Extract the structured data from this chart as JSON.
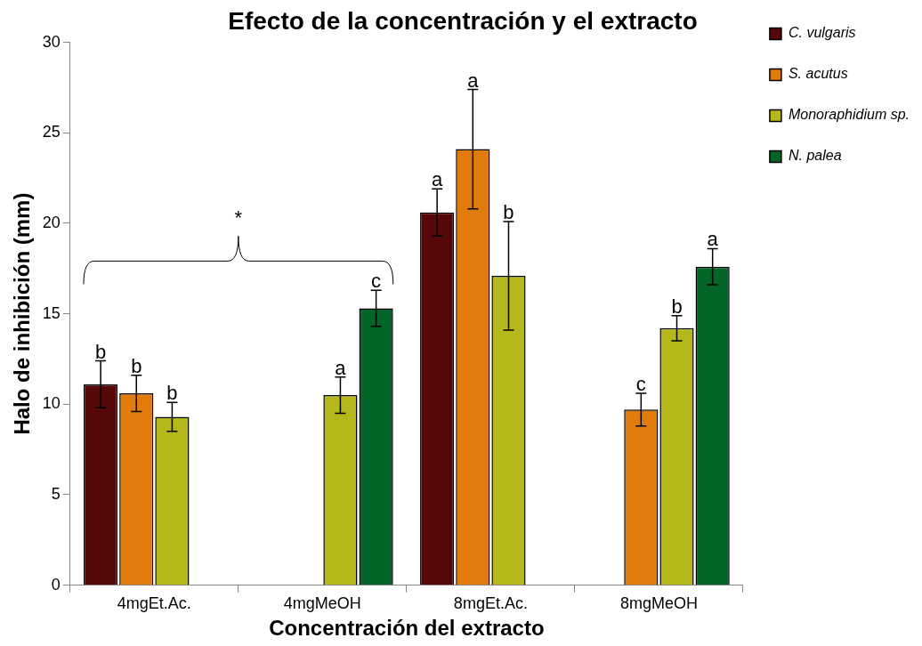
{
  "chart_data": {
    "type": "bar",
    "title": "Efecto de la concentración y el extracto",
    "xlabel": "Concentración del extracto",
    "ylabel": "Halo de inhibición (mm)",
    "categories": [
      "4mgEt.Ac.",
      "4mgMeOH",
      "8mgEt.Ac.",
      "8mgMeOH"
    ],
    "series": [
      {
        "name": "C. vulgaris",
        "color": "#560808",
        "values": [
          11.1,
          null,
          20.6,
          null
        ],
        "errors": [
          1.3,
          null,
          1.3,
          null
        ]
      },
      {
        "name": "S. acutus",
        "color": "#e07b0c",
        "values": [
          10.6,
          null,
          24.1,
          9.7
        ],
        "errors": [
          1.0,
          null,
          3.3,
          0.9
        ]
      },
      {
        "name": "Monoraphidium sp.",
        "color": "#b5b81b",
        "values": [
          9.3,
          10.5,
          17.1,
          14.2
        ],
        "errors": [
          0.8,
          1.0,
          3.0,
          0.7
        ]
      },
      {
        "name": "N. palea",
        "color": "#036628",
        "values": [
          null,
          15.3,
          null,
          17.6
        ],
        "errors": [
          null,
          1.0,
          null,
          1.0
        ]
      }
    ],
    "ylim": [
      0,
      30
    ],
    "yticks": [
      0,
      5,
      10,
      15,
      20,
      25,
      30
    ],
    "grid": false,
    "legend": "top right",
    "annotations": [
      "b",
      "b",
      "b",
      "a",
      "c",
      "a",
      "a",
      "b",
      "c",
      "b",
      "a",
      "*"
    ]
  }
}
